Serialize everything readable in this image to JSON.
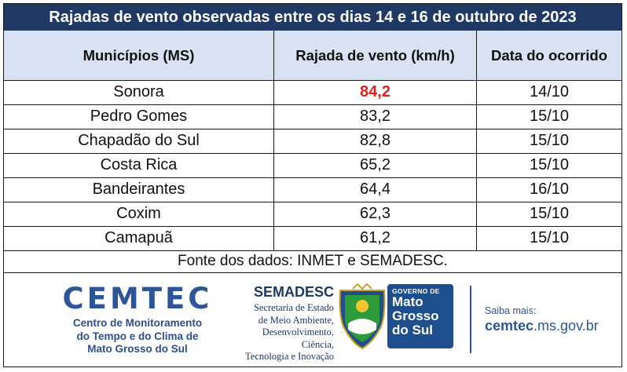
{
  "title": "Rajadas de vento observadas entre os dias 14 e 16 de outubro de 2023",
  "columns": [
    "Municípios (MS)",
    "Rajada de vento (km/h)",
    "Data do ocorrido"
  ],
  "rows": [
    {
      "municipio": "Sonora",
      "rajada": "84,2",
      "data": "14/10",
      "highlight": true
    },
    {
      "municipio": "Pedro Gomes",
      "rajada": "83,2",
      "data": "15/10"
    },
    {
      "municipio": "Chapadão do Sul",
      "rajada": "82,8",
      "data": "15/10"
    },
    {
      "municipio": "Costa Rica",
      "rajada": "65,2",
      "data": "15/10"
    },
    {
      "municipio": "Bandeirantes",
      "rajada": "64,4",
      "data": "16/10"
    },
    {
      "municipio": "Coxim",
      "rajada": "62,3",
      "data": "15/10"
    },
    {
      "municipio": "Camapuã",
      "rajada": "61,2",
      "data": "15/10"
    }
  ],
  "source": "Fonte dos dados: INMET e SEMADESC.",
  "footer": {
    "cemtec": {
      "name": "CEMTEC",
      "lines": [
        "Centro de Monitoramento",
        "do Tempo e do Clima de",
        "Mato Grosso do Sul"
      ]
    },
    "semadesc": {
      "name": "SEMADESC",
      "lines": [
        "Secretaria de Estado",
        "de Meio Ambiente,",
        "Desenvolvimento, Ciência,",
        "Tecnologia e Inovação"
      ]
    },
    "governo": {
      "top": "GOVERNO DE",
      "state_lines": [
        "Mato",
        "Grosso",
        "do Sul"
      ]
    },
    "saiba": {
      "label": "Saiba mais:",
      "url_bold": "cemtec",
      "url_rest": ".ms.gov.br"
    }
  },
  "colors": {
    "title_bg": "#1f3864",
    "header_bg": "#d9e2f3",
    "highlight_value": "#e0201b",
    "brand_blue": "#2e5597"
  }
}
